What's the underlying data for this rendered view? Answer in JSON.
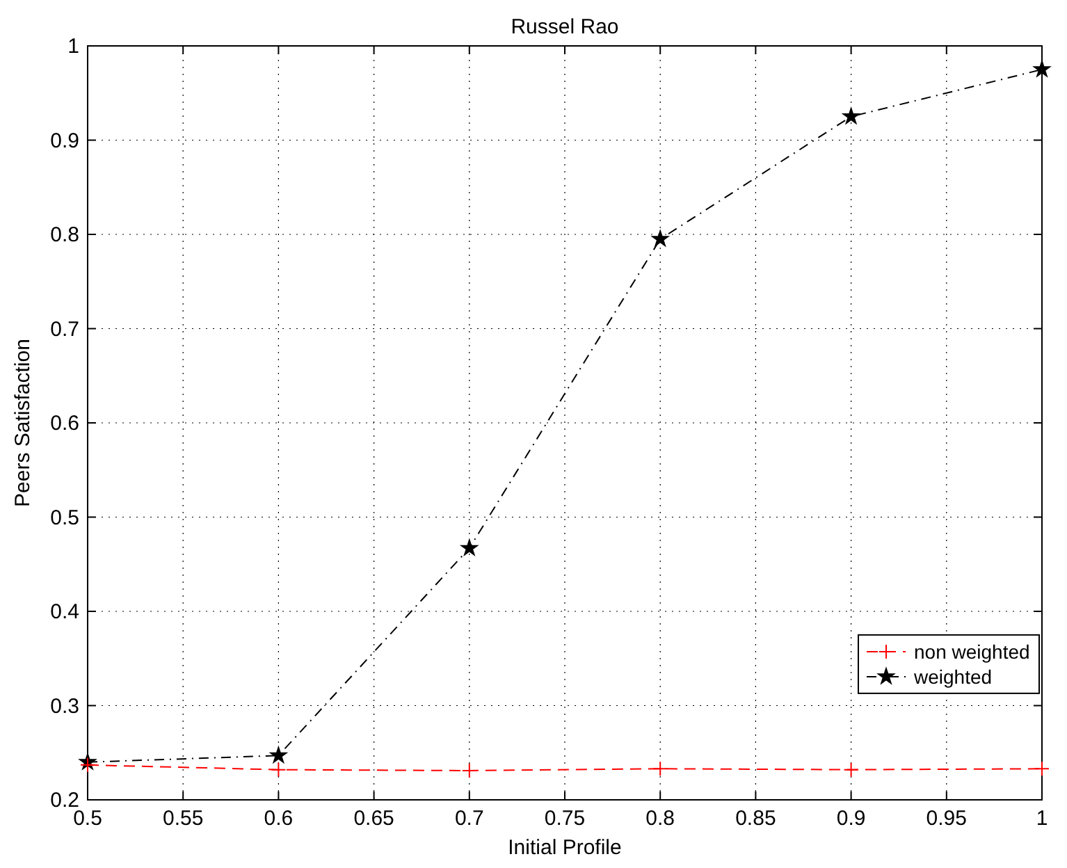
{
  "chart_data": {
    "type": "line",
    "title": "Russel Rao",
    "xlabel": "Initial Profile",
    "ylabel": "Peers Satisfaction",
    "x": [
      0.5,
      0.6,
      0.7,
      0.8,
      0.9,
      1
    ],
    "series": [
      {
        "name": "non weighted",
        "color": "#ff0000",
        "values": [
          0.237,
          0.232,
          0.231,
          0.233,
          0.232,
          0.233
        ],
        "marker": "cross",
        "line_style": "dashed"
      },
      {
        "name": "weighted",
        "color": "#000000",
        "values": [
          0.24,
          0.247,
          0.467,
          0.795,
          0.925,
          0.975
        ],
        "marker": "star",
        "line_style": "dashed"
      }
    ],
    "xlim": [
      0.5,
      1
    ],
    "xticks": [
      0.5,
      0.55,
      0.6,
      0.65,
      0.7,
      0.75,
      0.8,
      0.85,
      0.9,
      0.95,
      1
    ],
    "ylim": [
      0.2,
      1
    ],
    "yticks": [
      0.2,
      0.3,
      0.4,
      0.5,
      0.6,
      0.7,
      0.8,
      0.9,
      1
    ],
    "grid": true,
    "legend": "right"
  }
}
